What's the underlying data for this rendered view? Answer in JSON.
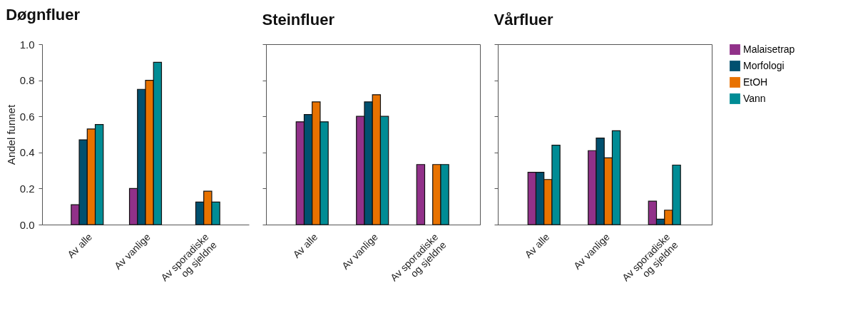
{
  "chart_data": [
    {
      "type": "bar",
      "title": "Døgnfluer",
      "ylabel": "Andel funnet",
      "categories": [
        "Av alle",
        "Av vanlige",
        "Av sporadiske\nog sjeldne"
      ],
      "ylim": [
        0,
        1
      ],
      "yticks": [
        {
          "value": 0,
          "label": "0.0"
        },
        0.2,
        0.4,
        0.6,
        0.8,
        {
          "value": 1,
          "label": "1.0"
        }
      ],
      "grid": false,
      "legend": false,
      "series": [
        {
          "color": "#913189",
          "values": [
            0.11,
            0.2,
            null
          ]
        },
        {
          "color": "#00506f",
          "values": [
            0.47,
            0.75,
            0.125
          ]
        },
        {
          "color": "#e87200",
          "values": [
            0.53,
            0.8,
            0.185
          ]
        },
        {
          "color": "#008c95",
          "values": [
            0.555,
            0.9,
            0.125
          ]
        }
      ]
    },
    {
      "type": "bar",
      "title": "Steinfluer",
      "categories": [
        "Av alle",
        "Av vanlige",
        "Av sporadiske\nog sjeldne"
      ],
      "ylim": [
        0,
        1
      ],
      "yticks": [
        {
          "value": 0,
          "label": null
        },
        {
          "value": 0.2,
          "label": null
        },
        {
          "value": 0.4,
          "label": null
        },
        {
          "value": 0.6,
          "label": null
        },
        {
          "value": 0.8,
          "label": null
        },
        {
          "value": 1,
          "label": null
        }
      ],
      "tick_labels": "x",
      "grid": false,
      "legend": false,
      "series": [
        {
          "color": "#913189",
          "values": [
            0.57,
            0.6,
            0.333
          ]
        },
        {
          "color": "#00506f",
          "values": [
            0.61,
            0.68,
            null
          ]
        },
        {
          "color": "#e87200",
          "values": [
            0.68,
            0.72,
            0.333
          ]
        },
        {
          "color": "#008c95",
          "values": [
            0.57,
            0.6,
            0.333
          ]
        }
      ]
    },
    {
      "type": "bar",
      "title": "Vårfluer",
      "categories": [
        "Av alle",
        "Av vanlige",
        "Av sporadiske\nog sjeldne"
      ],
      "ylim": [
        0,
        1
      ],
      "yticks": [
        {
          "value": 0,
          "label": null
        },
        {
          "value": 0.2,
          "label": null
        },
        {
          "value": 0.4,
          "label": null
        },
        {
          "value": 0.6,
          "label": null
        },
        {
          "value": 0.8,
          "label": null
        },
        {
          "value": 1,
          "label": null
        }
      ],
      "tick_labels": "x",
      "grid": false,
      "legend": "right",
      "series": [
        {
          "name": "Malaisetrap",
          "color": "#913189",
          "values": [
            0.29,
            0.41,
            0.13
          ]
        },
        {
          "name": "Morfologi",
          "color": "#00506f",
          "values": [
            0.29,
            0.48,
            0.03
          ]
        },
        {
          "name": "EtOH",
          "color": "#e87200",
          "values": [
            0.25,
            0.37,
            0.08
          ]
        },
        {
          "name": "Vann",
          "color": "#008c95",
          "values": [
            0.44,
            0.52,
            0.33
          ]
        }
      ]
    }
  ]
}
